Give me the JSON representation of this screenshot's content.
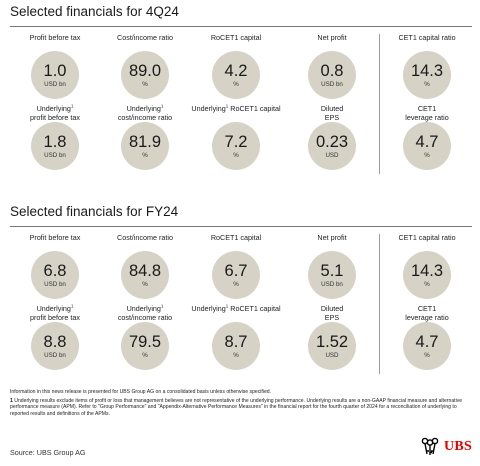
{
  "sections": [
    {
      "title": "Selected financials for 4Q24",
      "cells": [
        {
          "label1": "Profit before tax",
          "label2": "",
          "sup": "",
          "value": "1.0",
          "unit": "USD bn"
        },
        {
          "label1": "Cost/income ratio",
          "label2": "",
          "sup": "",
          "value": "89.0",
          "unit": "%"
        },
        {
          "label1": "RoCET1 capital",
          "label2": "",
          "sup": "",
          "value": "4.2",
          "unit": "%"
        },
        {
          "label1": "Net profit",
          "label2": "",
          "sup": "",
          "value": "0.8",
          "unit": "USD bn"
        },
        {
          "label1": "CET1 capital ratio",
          "label2": "",
          "sup": "",
          "value": "14.3",
          "unit": "%"
        },
        {
          "label1": "Underlying",
          "label2": "profit before tax",
          "sup": "1",
          "value": "1.8",
          "unit": "USD bn"
        },
        {
          "label1": "Underlying",
          "label2": "cost/income ratio",
          "sup": "1",
          "value": "81.9",
          "unit": "%"
        },
        {
          "label1": "Underlying",
          "label2": "RoCET1 capital",
          "sup": "1",
          "inline": true,
          "value": "7.2",
          "unit": "%"
        },
        {
          "label1": "Diluted",
          "label2": "EPS",
          "sup": "",
          "value": "0.23",
          "unit": "USD"
        },
        {
          "label1": "CET1",
          "label2": "leverage ratio",
          "sup": "",
          "value": "4.7",
          "unit": "%"
        }
      ]
    },
    {
      "title": "Selected financials for FY24",
      "cells": [
        {
          "label1": "Profit before tax",
          "label2": "",
          "sup": "",
          "value": "6.8",
          "unit": "USD bn"
        },
        {
          "label1": "Cost/income ratio",
          "label2": "",
          "sup": "",
          "value": "84.8",
          "unit": "%"
        },
        {
          "label1": "RoCET1 capital",
          "label2": "",
          "sup": "",
          "value": "6.7",
          "unit": "%"
        },
        {
          "label1": "Net profit",
          "label2": "",
          "sup": "",
          "value": "5.1",
          "unit": "USD bn"
        },
        {
          "label1": "CET1 capital ratio",
          "label2": "",
          "sup": "",
          "value": "14.3",
          "unit": "%"
        },
        {
          "label1": "Underlying",
          "label2": "profit before tax",
          "sup": "1",
          "value": "8.8",
          "unit": "USD bn"
        },
        {
          "label1": "Underlying",
          "label2": "cost/income ratio",
          "sup": "1",
          "value": "79.5",
          "unit": "%"
        },
        {
          "label1": "Underlying",
          "label2": "RoCET1 capital",
          "sup": "1",
          "inline": true,
          "value": "8.7",
          "unit": "%"
        },
        {
          "label1": "Diluted",
          "label2": "EPS",
          "sup": "",
          "value": "1.52",
          "unit": "USD"
        },
        {
          "label1": "CET1",
          "label2": "leverage ratio",
          "sup": "",
          "value": "4.7",
          "unit": "%"
        }
      ]
    }
  ],
  "footnote_intro": "Information in this news release is presented for UBS Group AG on a consolidated basis unless otherwise specified.",
  "footnote_1_marker": "1",
  "footnote_1": "Underlying results exclude items of profit or loss that management believes are not representative of the underlying performance. Underlying results are a non-GAAP financial measure and alternative performance measure (APM). Refer to \"Group Performance\" and \"Appendix-Alternative Performance Measures\" in the financial report for the fourth quarter of 2024 for a reconciliation of underlying to reported results and definitions of the APMs.",
  "source": "Source: UBS Group AG",
  "logo_text": "UBS",
  "colors": {
    "circle": "#d6d2c6",
    "logo": "#e60000",
    "rule": "#7a7a7a"
  }
}
